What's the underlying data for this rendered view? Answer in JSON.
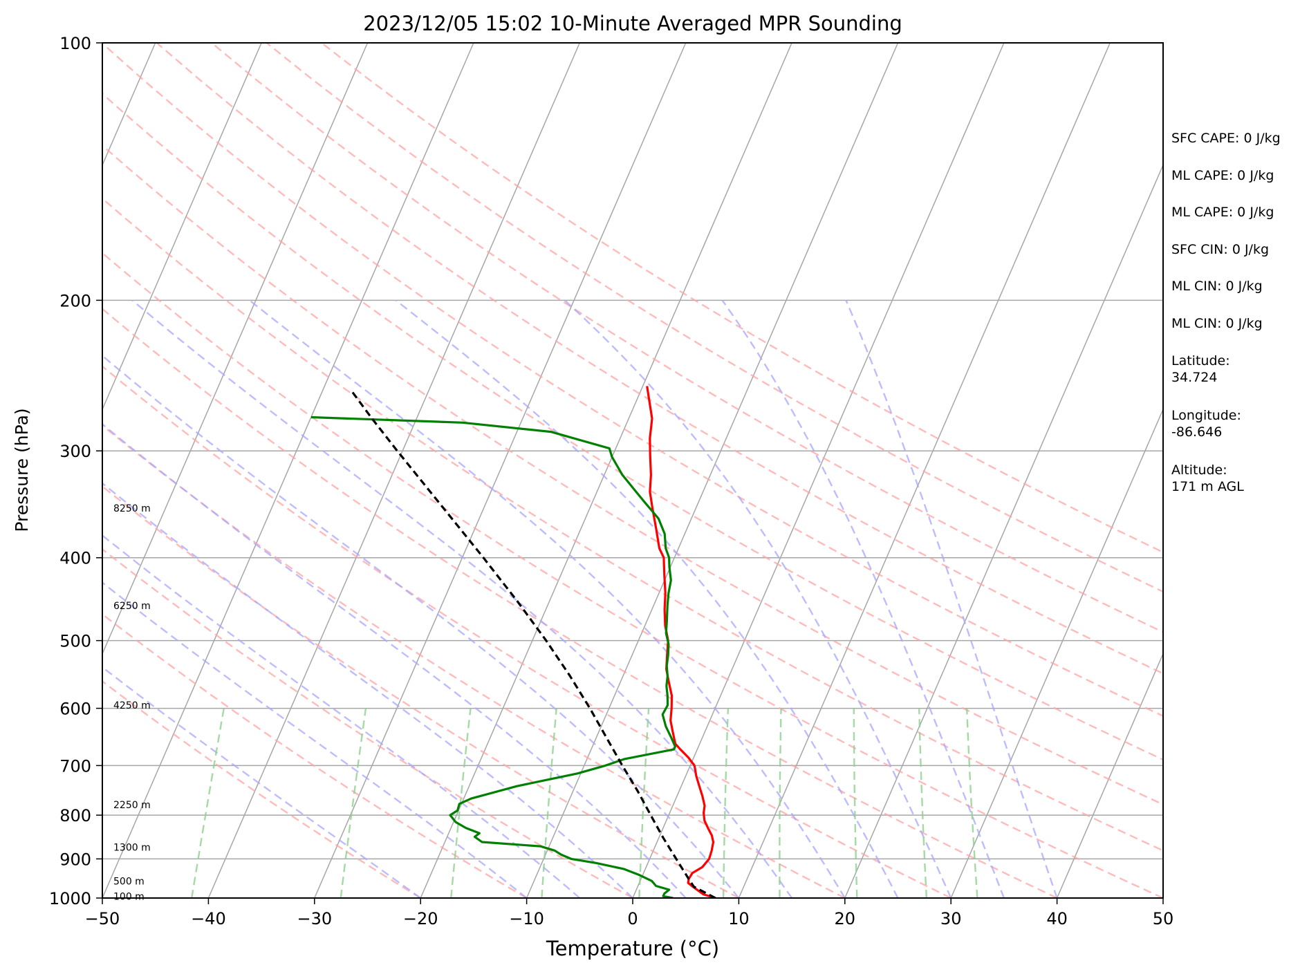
{
  "chart_data": {
    "type": "line",
    "title": "2023/12/05 15:02 10-Minute Averaged MPR Sounding",
    "xlabel": "Temperature (°C)",
    "ylabel": "Pressure (hPa)",
    "xlim": [
      -50,
      50
    ],
    "ylim": [
      1000,
      100
    ],
    "y_scale": "log",
    "x_ticks": [
      -50,
      -40,
      -30,
      -20,
      -10,
      0,
      10,
      20,
      30,
      40,
      50
    ],
    "x_tick_labels": [
      "−50",
      "−40",
      "−30",
      "−20",
      "−10",
      "0",
      "10",
      "20",
      "30",
      "40",
      "50"
    ],
    "y_ticks": [
      100,
      200,
      300,
      400,
      500,
      600,
      700,
      800,
      900,
      1000
    ],
    "y_tick_labels": [
      "100",
      "200",
      "300",
      "400",
      "500",
      "600",
      "700",
      "800",
      "900",
      "1000"
    ],
    "grid": true,
    "skew": 35,
    "height_labels": [
      {
        "text": "8250 m",
        "p": 350
      },
      {
        "text": "6250 m",
        "p": 455
      },
      {
        "text": "4250 m",
        "p": 595
      },
      {
        "text": "2250 m",
        "p": 778
      },
      {
        "text": "1300 m",
        "p": 872
      },
      {
        "text": "500 m",
        "p": 955
      },
      {
        "text": "100 m",
        "p": 995
      }
    ],
    "series": [
      {
        "color": "#ff0000",
        "points": [
          [
            1000,
            7.8
          ],
          [
            990,
            6.5
          ],
          [
            970,
            5.2
          ],
          [
            960,
            4.6
          ],
          [
            950,
            4.5
          ],
          [
            935,
            4.6
          ],
          [
            920,
            5.3
          ],
          [
            900,
            5.6
          ],
          [
            880,
            5.5
          ],
          [
            860,
            5.3
          ],
          [
            845,
            4.9
          ],
          [
            830,
            4.3
          ],
          [
            812,
            3.6
          ],
          [
            795,
            3.2
          ],
          [
            780,
            3.0
          ],
          [
            760,
            2.4
          ],
          [
            740,
            1.7
          ],
          [
            720,
            1.0
          ],
          [
            700,
            0.4
          ],
          [
            685,
            -0.5
          ],
          [
            670,
            -1.6
          ],
          [
            660,
            -2.3
          ],
          [
            640,
            -3.0
          ],
          [
            620,
            -3.7
          ],
          [
            600,
            -4.1
          ],
          [
            580,
            -4.6
          ],
          [
            560,
            -5.4
          ],
          [
            540,
            -6.2
          ],
          [
            520,
            -6.7
          ],
          [
            500,
            -7.2
          ],
          [
            480,
            -8.1
          ],
          [
            460,
            -8.8
          ],
          [
            440,
            -9.4
          ],
          [
            420,
            -10.2
          ],
          [
            400,
            -11.0
          ],
          [
            390,
            -11.8
          ],
          [
            370,
            -12.9
          ],
          [
            350,
            -14.1
          ],
          [
            335,
            -15.0
          ],
          [
            320,
            -15.6
          ],
          [
            305,
            -16.4
          ],
          [
            290,
            -17.2
          ],
          [
            275,
            -17.8
          ],
          [
            262,
            -18.8
          ],
          [
            252,
            -19.6
          ]
        ]
      },
      {
        "color": "#008000",
        "points": [
          [
            1000,
            3.8
          ],
          [
            995,
            2.8
          ],
          [
            988,
            2.8
          ],
          [
            978,
            3.1
          ],
          [
            968,
            1.7
          ],
          [
            955,
            1.1
          ],
          [
            940,
            -0.3
          ],
          [
            925,
            -2.0
          ],
          [
            910,
            -4.9
          ],
          [
            900,
            -7.4
          ],
          [
            890,
            -8.5
          ],
          [
            880,
            -9.3
          ],
          [
            870,
            -10.8
          ],
          [
            860,
            -16.5
          ],
          [
            848,
            -17.4
          ],
          [
            840,
            -17.1
          ],
          [
            828,
            -18.6
          ],
          [
            815,
            -19.8
          ],
          [
            800,
            -20.6
          ],
          [
            790,
            -20.1
          ],
          [
            776,
            -20.2
          ],
          [
            765,
            -19.3
          ],
          [
            740,
            -15.5
          ],
          [
            715,
            -10.3
          ],
          [
            700,
            -8.0
          ],
          [
            688,
            -6.5
          ],
          [
            670,
            -2.2
          ],
          [
            665,
            -2.2
          ],
          [
            650,
            -2.9
          ],
          [
            630,
            -3.9
          ],
          [
            610,
            -4.7
          ],
          [
            595,
            -4.6
          ],
          [
            580,
            -5.0
          ],
          [
            565,
            -5.5
          ],
          [
            550,
            -5.8
          ],
          [
            535,
            -6.3
          ],
          [
            520,
            -6.6
          ],
          [
            505,
            -7.0
          ],
          [
            490,
            -7.7
          ],
          [
            475,
            -8.1
          ],
          [
            455,
            -8.7
          ],
          [
            440,
            -9.1
          ],
          [
            425,
            -9.4
          ],
          [
            410,
            -10.1
          ],
          [
            400,
            -10.5
          ],
          [
            390,
            -11.2
          ],
          [
            375,
            -11.9
          ],
          [
            360,
            -13.1
          ],
          [
            345,
            -15.0
          ],
          [
            335,
            -16.3
          ],
          [
            320,
            -18.3
          ],
          [
            305,
            -20.0
          ],
          [
            298,
            -20.6
          ],
          [
            285,
            -26.8
          ],
          [
            278,
            -35.5
          ],
          [
            274,
            -50.0
          ]
        ]
      },
      {
        "color": "#000000",
        "dashed": true,
        "points": [
          [
            1000,
            7.8
          ],
          [
            970,
            5.3
          ],
          [
            950,
            4.5
          ],
          [
            900,
            2.5
          ],
          [
            850,
            0.4
          ],
          [
            800,
            -1.7
          ],
          [
            750,
            -3.9
          ],
          [
            700,
            -6.4
          ],
          [
            650,
            -9.0
          ],
          [
            600,
            -11.8
          ],
          [
            550,
            -15.0
          ],
          [
            500,
            -18.7
          ],
          [
            450,
            -23.0
          ],
          [
            400,
            -28.0
          ],
          [
            350,
            -33.8
          ],
          [
            300,
            -40.5
          ],
          [
            275,
            -44.2
          ],
          [
            255,
            -47.3
          ]
        ]
      }
    ],
    "dry_adiabats_theta_c": [
      -20,
      -10,
      0,
      10,
      20,
      30,
      40,
      50,
      60,
      70,
      80,
      90,
      100,
      110,
      120,
      130
    ],
    "moist_adiabats_start_c": [
      -20,
      -10,
      -5,
      0,
      5,
      10,
      15,
      20,
      25,
      30,
      35,
      40
    ],
    "mixing_ratio_lines_gkg": [
      0.1,
      0.4,
      1,
      2,
      4,
      7,
      10,
      16,
      24,
      32
    ]
  },
  "info_panel": {
    "sfc_cape": "SFC CAPE: 0 J/kg",
    "ml_cape_1": "ML CAPE: 0 J/kg",
    "ml_cape_2": "ML CAPE: 0 J/kg",
    "sfc_cin": "SFC CIN: 0 J/kg",
    "ml_cin_1": "ML CIN: 0 J/kg",
    "ml_cin_2": "ML CIN: 0 J/kg",
    "latitude_label": "Latitude:",
    "latitude_value": "34.724",
    "longitude_label": "Longitude:",
    "longitude_value": "-86.646",
    "altitude_label": "Altitude:",
    "altitude_value": "171 m AGL"
  },
  "colors": {
    "temperature": "#ff0000",
    "dewpoint": "#008000",
    "parcel": "#000000",
    "isotherm": "#a6a6a6",
    "dry_adiabat": "#ffa3a3",
    "moist_adiabat": "#a6a6ff",
    "mixing_ratio": "#8fcf8f"
  }
}
